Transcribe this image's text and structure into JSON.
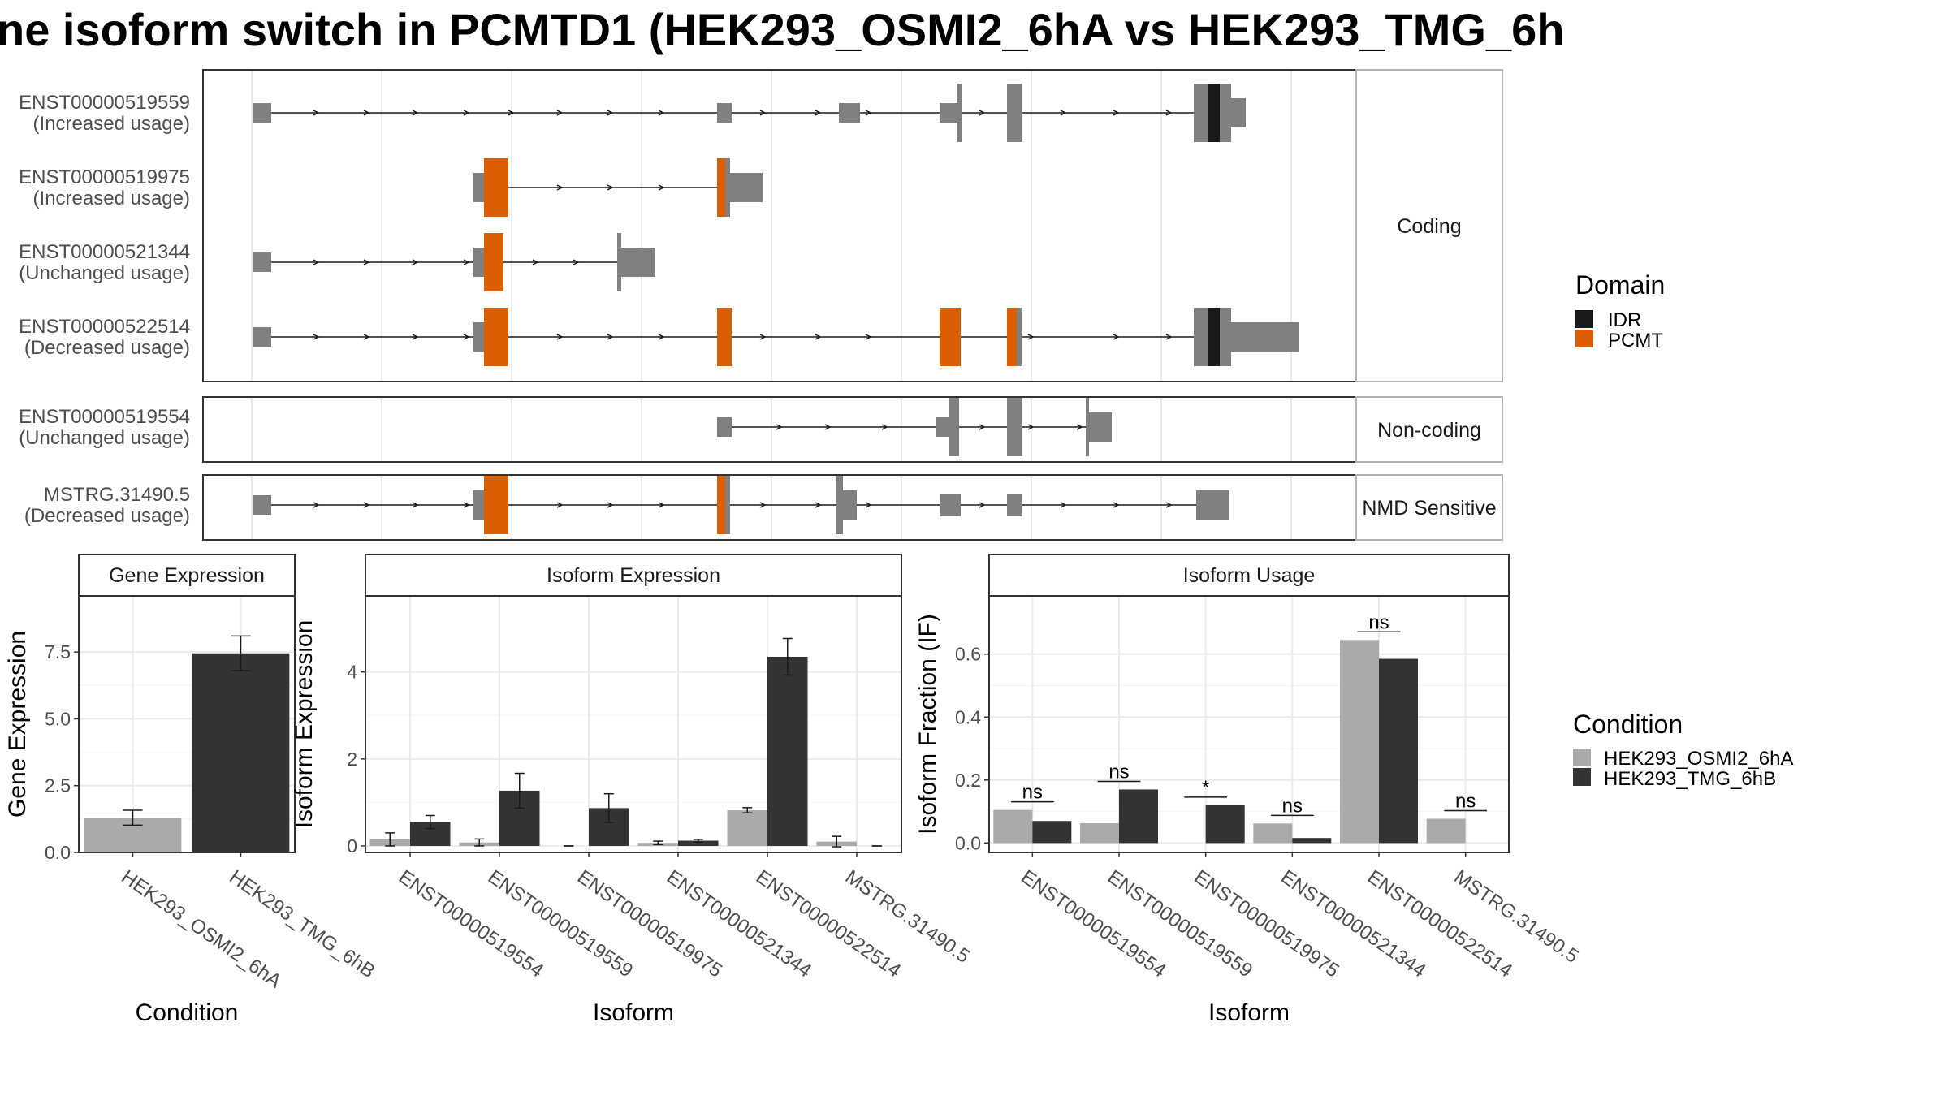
{
  "title": "ne isoform switch in PCMTD1 (HEK293_OSMI2_6hA vs HEK293_TMG_6h",
  "colors": {
    "exon": "#808080",
    "idr": "#1a1a1a",
    "pcmt": "#d95f02",
    "osmi": "#aaaaaa",
    "tmg": "#333333",
    "strip_bg": "#ffffff",
    "grid": "#ebebeb",
    "panel_border": "#333333"
  },
  "structure": {
    "strips": [
      "Coding",
      "Non-coding",
      "NMD Sensitive"
    ],
    "transcripts": [
      {
        "id": "ENST00000519559",
        "usage": "(Increased usage)",
        "group": 0
      },
      {
        "id": "ENST00000519975",
        "usage": "(Increased usage)",
        "group": 0
      },
      {
        "id": "ENST00000521344",
        "usage": "(Unchanged usage)",
        "group": 0
      },
      {
        "id": "ENST00000522514",
        "usage": "(Decreased usage)",
        "group": 0
      },
      {
        "id": "ENST00000519554",
        "usage": "(Unchanged usage)",
        "group": 1
      },
      {
        "id": "MSTRG.31490.5",
        "usage": "(Decreased usage)",
        "group": 2
      }
    ]
  },
  "legend_domain": {
    "title": "Domain",
    "items": [
      {
        "label": "IDR",
        "color": "#1a1a1a"
      },
      {
        "label": "PCMT",
        "color": "#d95f02"
      }
    ]
  },
  "legend_condition": {
    "title": "Condition",
    "items": [
      {
        "label": "HEK293_OSMI2_6hA",
        "color": "#aaaaaa"
      },
      {
        "label": "HEK293_TMG_6hB",
        "color": "#333333"
      }
    ]
  },
  "chart_data": [
    {
      "type": "bar",
      "title": "Gene Expression",
      "xlabel": "Condition",
      "ylabel": "Gene Expression",
      "categories": [
        "HEK293_OSMI2_6hA",
        "HEK293_TMG_6hB"
      ],
      "values": [
        1.3,
        7.45
      ],
      "errors": [
        0.28,
        0.65
      ],
      "ylim": [
        0,
        9.6
      ],
      "yticks": [
        0.0,
        2.5,
        5.0,
        7.5
      ],
      "ytick_labels": [
        "0.0",
        "2.5",
        "5.0",
        "7.5"
      ]
    },
    {
      "type": "bar",
      "title": "Isoform Expression",
      "xlabel": "Isoform",
      "ylabel": "Isoform Expression",
      "categories": [
        "ENST00000519554",
        "ENST00000519559",
        "ENST00000519975",
        "ENST00000521344",
        "ENST00000522514",
        "MSTRG.31490.5"
      ],
      "series": [
        {
          "name": "HEK293_OSMI2_6hA",
          "values": [
            0.15,
            0.08,
            0.0,
            0.07,
            0.82,
            0.1
          ],
          "errors": [
            0.15,
            0.08,
            0.0,
            0.04,
            0.06,
            0.12
          ]
        },
        {
          "name": "HEK293_TMG_6hB",
          "values": [
            0.55,
            1.27,
            0.87,
            0.12,
            4.35,
            0.0
          ],
          "errors": [
            0.15,
            0.4,
            0.33,
            0.03,
            0.42,
            0.0
          ]
        }
      ],
      "ylim": [
        -0.15,
        5.75
      ],
      "yticks": [
        0,
        2,
        4
      ],
      "ytick_labels": [
        "0",
        "2",
        "4"
      ]
    },
    {
      "type": "bar",
      "title": "Isoform Usage",
      "xlabel": "Isoform",
      "ylabel": "Isoform Fraction (IF)",
      "categories": [
        "ENST00000519554",
        "ENST00000519559",
        "ENST00000519975",
        "ENST00000521344",
        "ENST00000522514",
        "MSTRG.31490.5"
      ],
      "series": [
        {
          "name": "HEK293_OSMI2_6hA",
          "values": [
            0.105,
            0.063,
            0.0,
            0.062,
            0.645,
            0.077
          ]
        },
        {
          "name": "HEK293_TMG_6hB",
          "values": [
            0.07,
            0.17,
            0.12,
            0.016,
            0.585,
            0.0
          ]
        }
      ],
      "significance": [
        "ns",
        "ns",
        "*",
        "ns",
        "ns",
        "ns"
      ],
      "ylim": [
        -0.03,
        0.785
      ],
      "yticks": [
        0.0,
        0.2,
        0.4,
        0.6
      ],
      "ytick_labels": [
        "0.0",
        "0.2",
        "0.4",
        "0.6"
      ]
    }
  ]
}
